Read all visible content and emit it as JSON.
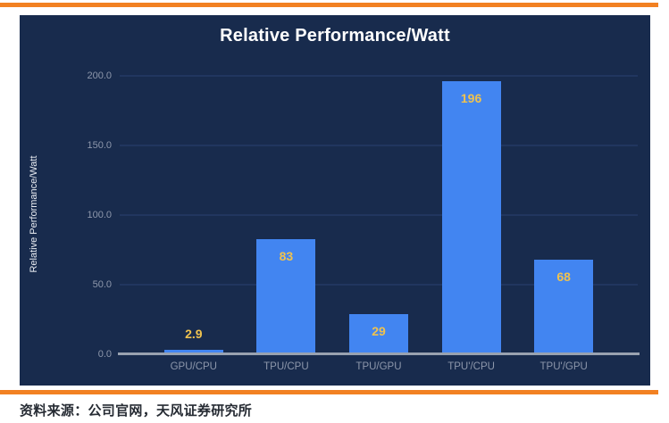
{
  "page": {
    "rule_color": "#F28122",
    "background": "#FFFFFF",
    "source_note": "资料来源：公司官网，天风证券研究所"
  },
  "chart_data": {
    "type": "bar",
    "title": "Relative Performance/Watt",
    "xlabel": "",
    "ylabel": "Relative Performance/Watt",
    "categories": [
      "GPU/CPU",
      "TPU/CPU",
      "TPU/GPU",
      "TPU'/CPU",
      "TPU'/GPU"
    ],
    "values": [
      2.9,
      83,
      29,
      196,
      68
    ],
    "value_labels": [
      "2.9",
      "83",
      "29",
      "196",
      "68"
    ],
    "ylim": [
      0,
      200
    ],
    "ytick_step": 50,
    "ytick_labels": [
      "0.0",
      "50.0",
      "100.0",
      "150.0",
      "200.0"
    ],
    "grid": true,
    "legend": false,
    "colors": {
      "panel_bg": "#182B4D",
      "bar": "#4285F1",
      "value_label": "#EFC24F",
      "grid_line": "#21365F",
      "axis_line": "#99A2B0",
      "tick_label": "#8D97AB",
      "title": "#FFFFFF",
      "axis_title": "#E9ECF2"
    }
  }
}
